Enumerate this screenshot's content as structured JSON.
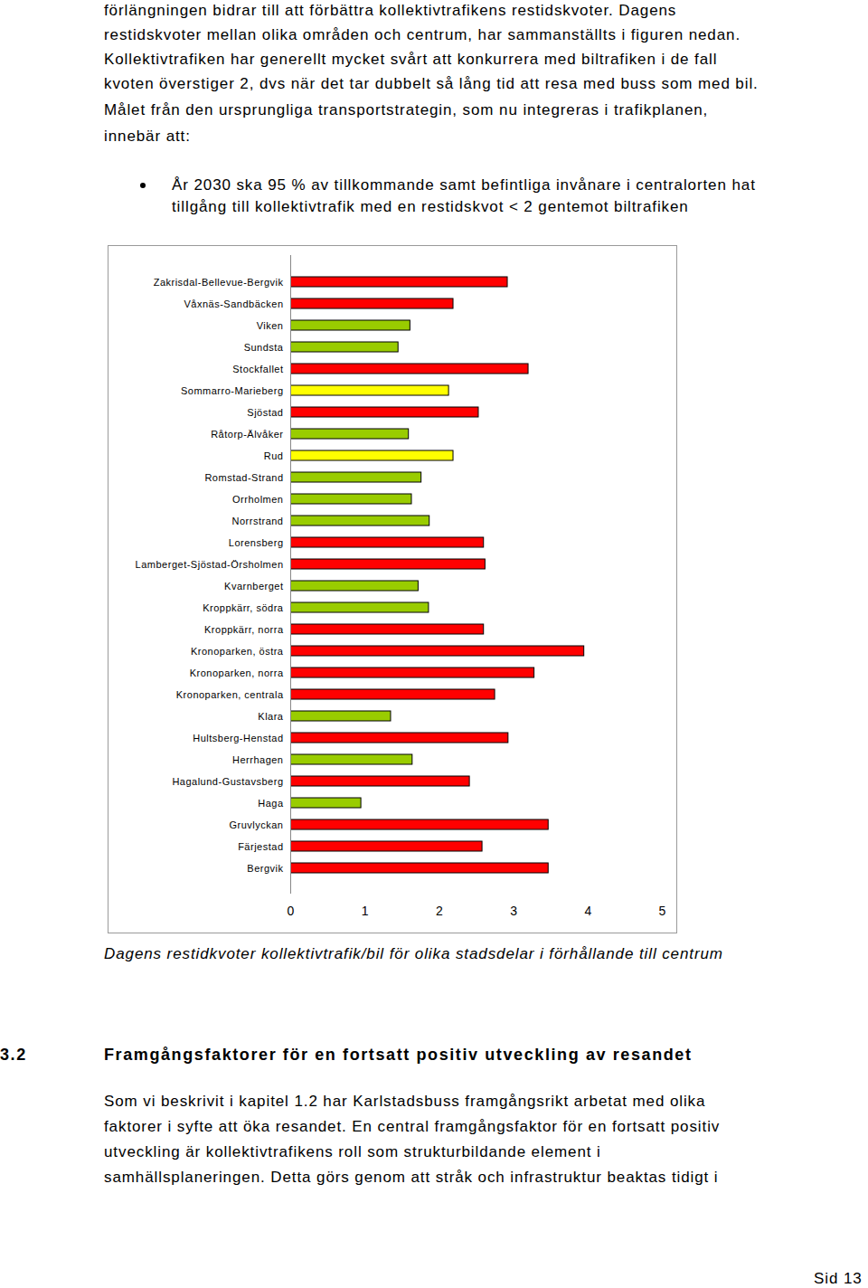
{
  "paragraph": [
    "förlängningen bidrar till att förbättra kollektivtrafikens restidskvoter. Dagens",
    "restidskvoter mellan olika områden och centrum, har sammanställts i figuren nedan.",
    "Kollektivtrafiken har generellt mycket svårt att konkurrera med biltrafiken i de fall",
    "kvoten överstiger 2, dvs när det tar dubbelt så lång tid att resa med buss som med bil.",
    "Målet från den ursprungliga transportstrategin, som nu integreras i trafikplanen,",
    "innebär att:"
  ],
  "bullet": [
    "År 2030 ska 95 % av tillkommande samt befintliga invånare i centralorten hat",
    "tillgång till kollektivtrafik med en restidskvot < 2 gentemot biltrafiken"
  ],
  "chart_data": {
    "type": "bar",
    "orientation": "horizontal",
    "grid": false,
    "categories": [
      "Zakrisdal-Bellevue-Bergvik",
      "Våxnäs-Sandbäcken",
      "Viken",
      "Sundsta",
      "Stockfallet",
      "Sommarro-Marieberg",
      "Sjöstad",
      "Råtorp-Älvåker",
      "Rud",
      "Romstad-Strand",
      "Orrholmen",
      "Norrstrand",
      "Lorensberg",
      "Lamberget-Sjöstad-Örsholmen",
      "Kvarnberget",
      "Kroppkärr, södra",
      "Kroppkärr, norra",
      "Kronoparken, östra",
      "Kronoparken, norra",
      "Kronoparken, centrala",
      "Klara",
      "Hultsberg-Henstad",
      "Herrhagen",
      "Hagalund-Gustavsberg",
      "Haga",
      "Gruvlyckan",
      "Färjestad",
      "Bergvik"
    ],
    "values": [
      2.92,
      2.19,
      1.61,
      1.45,
      3.2,
      2.13,
      2.53,
      1.59,
      2.19,
      1.76,
      1.63,
      1.87,
      2.6,
      2.62,
      1.72,
      1.86,
      2.6,
      3.95,
      3.28,
      2.75,
      1.35,
      2.93,
      1.64,
      2.41,
      0.95,
      3.47,
      2.58,
      3.47
    ],
    "colors": [
      "#ff0000",
      "#ff0000",
      "#99cc00",
      "#99cc00",
      "#ff0000",
      "#ffff00",
      "#ff0000",
      "#99cc00",
      "#ffff00",
      "#99cc00",
      "#99cc00",
      "#99cc00",
      "#ff0000",
      "#ff0000",
      "#99cc00",
      "#99cc00",
      "#ff0000",
      "#ff0000",
      "#ff0000",
      "#ff0000",
      "#99cc00",
      "#ff0000",
      "#99cc00",
      "#ff0000",
      "#99cc00",
      "#ff0000",
      "#ff0000",
      "#ff0000"
    ],
    "xlim": [
      0,
      5
    ],
    "xticks": [
      0,
      1,
      2,
      3,
      4,
      5
    ]
  },
  "caption": "Dagens restidkvoter kollektivtrafik/bil för olika stadsdelar i förhållande till centrum",
  "section": {
    "number": "3.2",
    "title": "Framgångsfaktorer för en fortsatt positiv utveckling av resandet"
  },
  "body": [
    "Som vi beskrivit i kapitel 1.2 har Karlstadsbuss framgångsrikt arbetat med olika",
    "faktorer i syfte att öka resandet. En central framgångsfaktor för en fortsatt positiv",
    "utveckling är kollektivtrafikens roll som strukturbildande element i",
    "samhällsplaneringen. Detta görs genom att stråk och infrastruktur beaktas tidigt i"
  ],
  "footer": "Sid 13"
}
